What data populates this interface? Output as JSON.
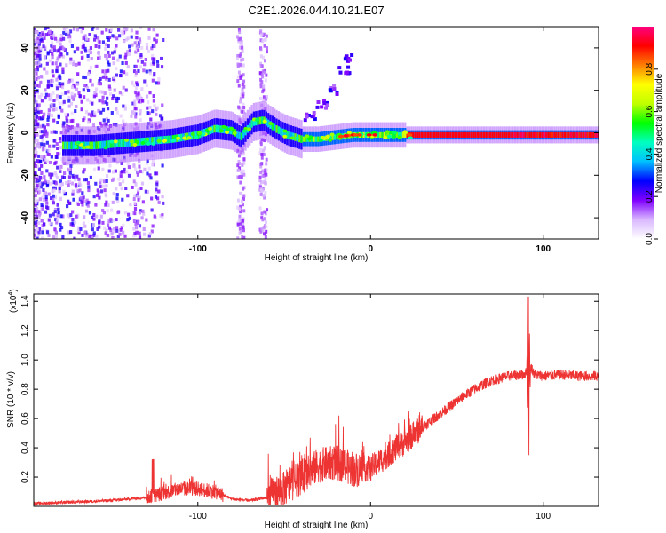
{
  "title": "C2E1.2026.044.10.21.E07",
  "chart_data": [
    {
      "type": "heatmap",
      "xlabel": "Height of straight line (km)",
      "ylabel": "Frequency (Hz)",
      "xlim": [
        -195,
        132
      ],
      "ylim": [
        -50,
        50
      ],
      "x_ticks": [
        -100,
        0,
        100
      ],
      "x_tick_labels": [
        "-100",
        "0",
        "100"
      ],
      "y_ticks": [
        -40,
        -20,
        0,
        20,
        40
      ],
      "y_tick_labels": [
        "-40",
        "-20",
        "0",
        "20",
        "40"
      ],
      "colorbar": {
        "label": "Normalized spectral amplitude",
        "range": [
          0,
          1
        ],
        "ticks": [
          0.0,
          0.2,
          0.4,
          0.6,
          0.8
        ],
        "tick_labels": [
          "0.0",
          "0.2",
          "0.4",
          "0.6",
          "0.8"
        ],
        "colors": [
          "#ffffff",
          "#d9b8ff",
          "#8000ff",
          "#0000ff",
          "#00c0ff",
          "#00ffc0",
          "#00ff00",
          "#c0ff00",
          "#ffff00",
          "#ff8000",
          "#ff0000",
          "#ff0080"
        ]
      },
      "ridge": [
        {
          "x": -175,
          "f": -6
        },
        {
          "x": -160,
          "f": -6
        },
        {
          "x": -145,
          "f": -5
        },
        {
          "x": -130,
          "f": -4
        },
        {
          "x": -115,
          "f": -3
        },
        {
          "x": -100,
          "f": -1
        },
        {
          "x": -90,
          "f": 2
        },
        {
          "x": -80,
          "f": 1
        },
        {
          "x": -75,
          "f": -2
        },
        {
          "x": -68,
          "f": 5
        },
        {
          "x": -62,
          "f": 6
        },
        {
          "x": -55,
          "f": 2
        },
        {
          "x": -48,
          "f": -1
        },
        {
          "x": -40,
          "f": -3
        },
        {
          "x": -30,
          "f": -3
        },
        {
          "x": -20,
          "f": -2
        },
        {
          "x": -10,
          "f": -1
        },
        {
          "x": 0,
          "f": -1
        },
        {
          "x": 10,
          "f": -1
        },
        {
          "x": 20,
          "f": -1
        },
        {
          "x": 40,
          "f": -1
        },
        {
          "x": 60,
          "f": -1
        },
        {
          "x": 80,
          "f": -1
        },
        {
          "x": 90,
          "f": -1
        },
        {
          "x": 100,
          "f": -1
        },
        {
          "x": 132,
          "f": -1
        }
      ],
      "branch": [
        {
          "x": -35,
          "f": 8
        },
        {
          "x": -28,
          "f": 13
        },
        {
          "x": -22,
          "f": 20
        },
        {
          "x": -15,
          "f": 29
        },
        {
          "x": -12,
          "f": 35
        }
      ]
    },
    {
      "type": "line",
      "xlabel": "Height of straight line (km)",
      "ylabel": "SNR (10 * v/v)",
      "y_multiplier": "(x10",
      "y_multiplier_exp": "4",
      "y_multiplier_close": ")",
      "xlim": [
        -195,
        132
      ],
      "ylim": [
        0,
        1.45
      ],
      "x_ticks": [
        -100,
        0,
        100
      ],
      "x_tick_labels": [
        "-100",
        "0",
        "100"
      ],
      "y_ticks": [
        0.2,
        0.4,
        0.6,
        0.8,
        1.0,
        1.2,
        1.4
      ],
      "y_tick_labels": [
        "0.2",
        "0.4",
        "0.6",
        "0.8",
        "1.0",
        "1.2",
        "1.4"
      ],
      "series": [
        {
          "name": "SNR",
          "color": "#ee3333",
          "x": [
            -195,
            -170,
            -150,
            -130,
            -120,
            -110,
            -100,
            -90,
            -80,
            -70,
            -60,
            -50,
            -40,
            -30,
            -20,
            -10,
            0,
            10,
            20,
            30,
            40,
            50,
            60,
            70,
            80,
            88,
            91,
            93,
            95,
            100,
            110,
            120,
            132
          ],
          "y": [
            0.02,
            0.03,
            0.04,
            0.06,
            0.09,
            0.12,
            0.12,
            0.1,
            0.05,
            0.04,
            0.06,
            0.12,
            0.2,
            0.28,
            0.3,
            0.25,
            0.26,
            0.35,
            0.44,
            0.54,
            0.63,
            0.72,
            0.8,
            0.86,
            0.89,
            0.9,
            0.92,
            0.95,
            0.9,
            0.89,
            0.9,
            0.89,
            0.89
          ]
        }
      ]
    }
  ]
}
